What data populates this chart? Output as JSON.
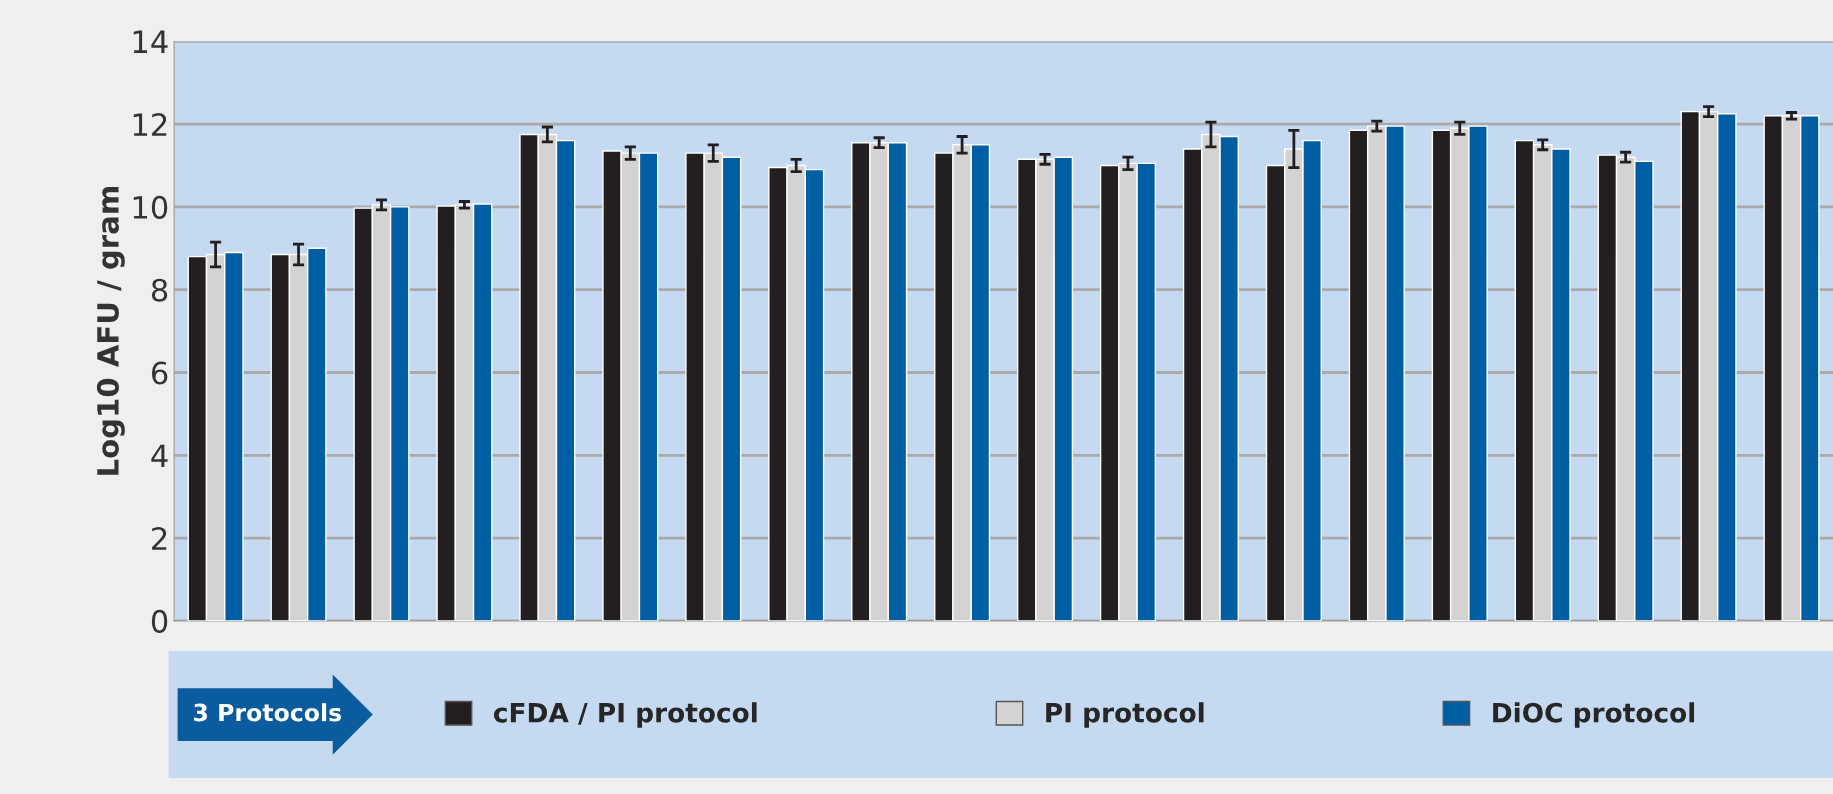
{
  "chart_data": {
    "type": "bar",
    "ylabel": "Log10 AFU / gram",
    "legend_title": "3 Protocols",
    "categories": [
      null,
      null,
      null,
      null,
      null,
      null,
      null,
      null,
      null,
      null,
      null,
      null,
      null,
      null,
      null,
      null,
      null,
      null,
      null,
      null
    ],
    "series": [
      {
        "name": "cFDA / PI protocol",
        "color": "#231f20",
        "values": [
          8.8,
          8.85,
          9.97,
          10.02,
          11.75,
          11.35,
          11.3,
          10.95,
          11.55,
          11.3,
          11.15,
          11.0,
          11.4,
          11.0,
          11.85,
          11.85,
          11.6,
          11.25,
          12.3,
          12.2
        ]
      },
      {
        "name": "PI protocol",
        "color": "#d3d3d3",
        "values": [
          8.85,
          8.85,
          10.05,
          10.05,
          11.75,
          11.3,
          11.3,
          11.0,
          11.55,
          11.5,
          11.15,
          11.05,
          11.75,
          11.4,
          11.95,
          11.9,
          11.5,
          11.2,
          12.3,
          12.2
        ],
        "errors": [
          0.3,
          0.25,
          0.12,
          0.08,
          0.18,
          0.15,
          0.2,
          0.15,
          0.12,
          0.2,
          0.12,
          0.15,
          0.3,
          0.45,
          0.12,
          0.15,
          0.12,
          0.12,
          0.12,
          0.08
        ]
      },
      {
        "name": "DiOC protocol",
        "color": "#005ea3",
        "values": [
          8.9,
          9.0,
          10.0,
          10.07,
          11.6,
          11.3,
          11.2,
          10.9,
          11.55,
          11.5,
          11.2,
          11.05,
          11.7,
          11.6,
          11.95,
          11.95,
          11.4,
          11.1,
          12.25,
          12.2
        ]
      }
    ],
    "ylim": [
      0,
      14
    ],
    "yticks": [
      0,
      2,
      4,
      6,
      8,
      10,
      12,
      14
    ],
    "grid": "y",
    "legend": "bottom"
  }
}
